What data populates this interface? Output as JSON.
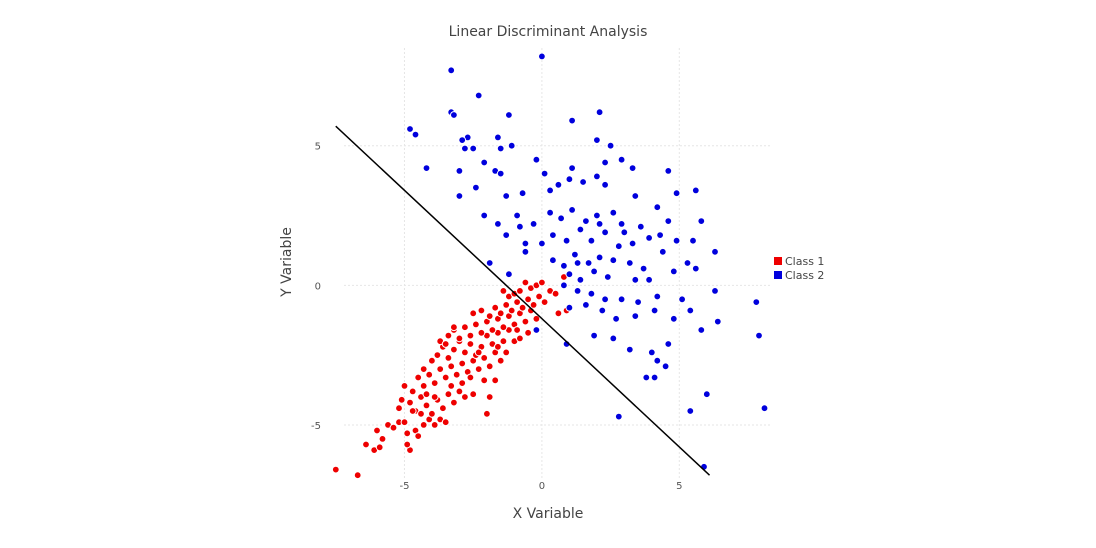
{
  "chart_data": {
    "type": "scatter",
    "title": "Linear Discriminant Analysis",
    "xlabel": "X Variable",
    "ylabel": "Y Variable",
    "xlim": [
      -7.2,
      8.3
    ],
    "ylim": [
      -6.9,
      8.5
    ],
    "xticks": [
      -5,
      0,
      5
    ],
    "yticks": [
      -5,
      0,
      5
    ],
    "grid": true,
    "legend_position": "right",
    "boundary_line": {
      "x": [
        -7.5,
        6.1
      ],
      "y": [
        5.7,
        -6.8
      ],
      "color": "#000000"
    },
    "series": [
      {
        "name": "Class 1",
        "color": "#ee0000",
        "points": [
          [
            -7.5,
            -6.6
          ],
          [
            -6.7,
            -6.8
          ],
          [
            -6.4,
            -5.7
          ],
          [
            -6.1,
            -5.9
          ],
          [
            -5.9,
            -5.8
          ],
          [
            -6.0,
            -5.2
          ],
          [
            -5.8,
            -5.5
          ],
          [
            -5.6,
            -5.0
          ],
          [
            -5.4,
            -5.1
          ],
          [
            -5.2,
            -4.9
          ],
          [
            -5.0,
            -4.9
          ],
          [
            -4.9,
            -5.3
          ],
          [
            -4.8,
            -5.9
          ],
          [
            -4.9,
            -5.7
          ],
          [
            -4.6,
            -5.2
          ],
          [
            -4.5,
            -5.4
          ],
          [
            -4.3,
            -5.0
          ],
          [
            -4.1,
            -4.8
          ],
          [
            -3.9,
            -5.0
          ],
          [
            -3.7,
            -4.8
          ],
          [
            -3.5,
            -4.9
          ],
          [
            -5.1,
            -4.1
          ],
          [
            -4.8,
            -4.2
          ],
          [
            -4.6,
            -4.5
          ],
          [
            -4.4,
            -4.0
          ],
          [
            -4.2,
            -4.3
          ],
          [
            -4.0,
            -4.6
          ],
          [
            -3.8,
            -4.1
          ],
          [
            -3.6,
            -4.4
          ],
          [
            -3.4,
            -3.9
          ],
          [
            -3.2,
            -4.2
          ],
          [
            -3.0,
            -3.8
          ],
          [
            -2.8,
            -4.0
          ],
          [
            -2.5,
            -3.9
          ],
          [
            -2.1,
            -3.4
          ],
          [
            -5.0,
            -3.6
          ],
          [
            -4.7,
            -3.8
          ],
          [
            -4.5,
            -3.3
          ],
          [
            -4.3,
            -3.6
          ],
          [
            -4.1,
            -3.2
          ],
          [
            -3.9,
            -3.5
          ],
          [
            -3.7,
            -3.0
          ],
          [
            -3.5,
            -3.3
          ],
          [
            -3.3,
            -2.9
          ],
          [
            -3.1,
            -3.2
          ],
          [
            -2.9,
            -2.8
          ],
          [
            -2.7,
            -3.1
          ],
          [
            -2.5,
            -2.7
          ],
          [
            -2.3,
            -3.0
          ],
          [
            -2.1,
            -2.6
          ],
          [
            -1.9,
            -2.9
          ],
          [
            -1.7,
            -2.4
          ],
          [
            -1.5,
            -2.7
          ],
          [
            -4.3,
            -3.0
          ],
          [
            -4.0,
            -2.7
          ],
          [
            -3.8,
            -2.5
          ],
          [
            -3.6,
            -2.2
          ],
          [
            -3.4,
            -2.6
          ],
          [
            -3.2,
            -2.3
          ],
          [
            -3.0,
            -2.0
          ],
          [
            -2.8,
            -2.4
          ],
          [
            -2.6,
            -2.1
          ],
          [
            -2.4,
            -2.5
          ],
          [
            -2.2,
            -2.2
          ],
          [
            -2.0,
            -1.8
          ],
          [
            -1.8,
            -2.1
          ],
          [
            -1.6,
            -1.7
          ],
          [
            -1.4,
            -2.0
          ],
          [
            -1.2,
            -1.6
          ],
          [
            -1.0,
            -2.0
          ],
          [
            -3.7,
            -2.0
          ],
          [
            -3.4,
            -1.8
          ],
          [
            -3.2,
            -1.6
          ],
          [
            -3.0,
            -1.9
          ],
          [
            -2.8,
            -1.5
          ],
          [
            -2.6,
            -1.8
          ],
          [
            -2.4,
            -1.4
          ],
          [
            -2.2,
            -1.7
          ],
          [
            -2.0,
            -1.3
          ],
          [
            -1.8,
            -1.6
          ],
          [
            -1.6,
            -1.2
          ],
          [
            -1.4,
            -1.5
          ],
          [
            -1.2,
            -1.1
          ],
          [
            -1.0,
            -1.4
          ],
          [
            -0.8,
            -1.0
          ],
          [
            -0.6,
            -1.3
          ],
          [
            -0.4,
            -0.9
          ],
          [
            -0.2,
            -1.2
          ],
          [
            -2.5,
            -1.0
          ],
          [
            -2.2,
            -0.9
          ],
          [
            -1.9,
            -1.1
          ],
          [
            -1.7,
            -0.8
          ],
          [
            -1.5,
            -1.0
          ],
          [
            -1.3,
            -0.7
          ],
          [
            -1.1,
            -0.9
          ],
          [
            -0.9,
            -0.6
          ],
          [
            -0.7,
            -0.8
          ],
          [
            -0.5,
            -0.5
          ],
          [
            -0.3,
            -0.7
          ],
          [
            -0.1,
            -0.4
          ],
          [
            0.1,
            -0.6
          ],
          [
            -1.4,
            -0.2
          ],
          [
            -1.2,
            -0.4
          ],
          [
            -1.0,
            -0.3
          ],
          [
            -0.8,
            -0.2
          ],
          [
            -0.6,
            0.1
          ],
          [
            -0.4,
            -0.1
          ],
          [
            -0.2,
            0.0
          ],
          [
            0.0,
            0.1
          ],
          [
            0.3,
            -0.2
          ],
          [
            0.5,
            -0.3
          ],
          [
            0.8,
            0.3
          ],
          [
            0.9,
            -0.9
          ],
          [
            0.6,
            -1.0
          ],
          [
            -0.5,
            -1.7
          ],
          [
            -0.8,
            -1.9
          ],
          [
            -1.7,
            -3.4
          ],
          [
            -2.0,
            -4.6
          ],
          [
            -1.9,
            -4.0
          ],
          [
            -3.2,
            -1.5
          ],
          [
            -3.5,
            -2.1
          ],
          [
            -3.9,
            -4.0
          ],
          [
            -4.2,
            -3.9
          ],
          [
            -4.4,
            -4.6
          ],
          [
            -4.7,
            -4.5
          ],
          [
            -5.2,
            -4.4
          ],
          [
            -3.3,
            -3.6
          ],
          [
            -2.9,
            -3.5
          ],
          [
            -2.6,
            -3.3
          ],
          [
            -2.3,
            -2.4
          ],
          [
            -1.6,
            -2.2
          ],
          [
            -1.3,
            -2.4
          ],
          [
            -0.9,
            -1.6
          ]
        ]
      },
      {
        "name": "Class 2",
        "color": "#0000dd",
        "points": [
          [
            0.0,
            8.2
          ],
          [
            -3.3,
            7.7
          ],
          [
            -2.3,
            6.8
          ],
          [
            -3.3,
            6.2
          ],
          [
            -3.2,
            6.1
          ],
          [
            -1.2,
            6.1
          ],
          [
            2.1,
            6.2
          ],
          [
            1.1,
            5.9
          ],
          [
            -4.8,
            5.6
          ],
          [
            -4.6,
            5.4
          ],
          [
            -2.7,
            5.3
          ],
          [
            -2.9,
            5.2
          ],
          [
            -1.6,
            5.3
          ],
          [
            -1.1,
            5.0
          ],
          [
            -1.5,
            4.9
          ],
          [
            -2.5,
            4.9
          ],
          [
            -2.8,
            4.9
          ],
          [
            2.0,
            5.2
          ],
          [
            2.5,
            5.0
          ],
          [
            -4.2,
            4.2
          ],
          [
            -3.0,
            4.1
          ],
          [
            -2.1,
            4.4
          ],
          [
            -1.7,
            4.1
          ],
          [
            -1.5,
            4.0
          ],
          [
            -0.2,
            4.5
          ],
          [
            0.1,
            4.0
          ],
          [
            1.1,
            4.2
          ],
          [
            2.3,
            4.4
          ],
          [
            2.9,
            4.5
          ],
          [
            3.3,
            4.2
          ],
          [
            4.6,
            4.1
          ],
          [
            -3.0,
            3.2
          ],
          [
            -2.4,
            3.5
          ],
          [
            -1.3,
            3.2
          ],
          [
            -0.7,
            3.3
          ],
          [
            0.3,
            3.4
          ],
          [
            0.6,
            3.6
          ],
          [
            1.0,
            3.8
          ],
          [
            1.5,
            3.7
          ],
          [
            2.0,
            3.9
          ],
          [
            2.3,
            3.6
          ],
          [
            3.4,
            3.2
          ],
          [
            4.9,
            3.3
          ],
          [
            5.6,
            3.4
          ],
          [
            -2.1,
            2.5
          ],
          [
            -1.6,
            2.2
          ],
          [
            -0.9,
            2.5
          ],
          [
            -0.8,
            2.1
          ],
          [
            -0.3,
            2.2
          ],
          [
            0.3,
            2.6
          ],
          [
            0.7,
            2.4
          ],
          [
            1.1,
            2.7
          ],
          [
            1.6,
            2.3
          ],
          [
            2.0,
            2.5
          ],
          [
            2.6,
            2.6
          ],
          [
            2.9,
            2.2
          ],
          [
            3.6,
            2.1
          ],
          [
            4.2,
            2.8
          ],
          [
            4.6,
            2.3
          ],
          [
            5.8,
            2.3
          ],
          [
            -1.3,
            1.8
          ],
          [
            -0.6,
            1.5
          ],
          [
            0.0,
            1.5
          ],
          [
            0.4,
            1.8
          ],
          [
            0.9,
            1.6
          ],
          [
            1.4,
            2.0
          ],
          [
            1.8,
            1.6
          ],
          [
            2.3,
            1.9
          ],
          [
            2.8,
            1.4
          ],
          [
            3.3,
            1.5
          ],
          [
            3.9,
            1.7
          ],
          [
            4.3,
            1.8
          ],
          [
            4.9,
            1.6
          ],
          [
            5.5,
            1.6
          ],
          [
            6.3,
            1.2
          ],
          [
            -1.9,
            0.8
          ],
          [
            -1.2,
            0.4
          ],
          [
            -0.6,
            1.2
          ],
          [
            0.4,
            0.9
          ],
          [
            0.8,
            0.7
          ],
          [
            1.2,
            1.1
          ],
          [
            1.7,
            0.8
          ],
          [
            2.1,
            1.0
          ],
          [
            2.6,
            0.9
          ],
          [
            3.2,
            0.8
          ],
          [
            3.7,
            0.6
          ],
          [
            4.4,
            1.2
          ],
          [
            4.8,
            0.5
          ],
          [
            5.3,
            0.8
          ],
          [
            5.6,
            0.6
          ],
          [
            1.0,
            0.4
          ],
          [
            1.4,
            0.2
          ],
          [
            1.9,
            0.5
          ],
          [
            2.4,
            0.3
          ],
          [
            3.4,
            0.2
          ],
          [
            3.9,
            0.2
          ],
          [
            0.8,
            0.0
          ],
          [
            1.3,
            -0.2
          ],
          [
            1.8,
            -0.3
          ],
          [
            2.3,
            -0.5
          ],
          [
            2.9,
            -0.5
          ],
          [
            3.5,
            -0.6
          ],
          [
            4.2,
            -0.4
          ],
          [
            5.1,
            -0.5
          ],
          [
            6.3,
            -0.2
          ],
          [
            7.8,
            -0.6
          ],
          [
            1.0,
            -0.8
          ],
          [
            1.6,
            -0.7
          ],
          [
            2.2,
            -0.9
          ],
          [
            2.7,
            -1.2
          ],
          [
            3.4,
            -1.1
          ],
          [
            4.1,
            -0.9
          ],
          [
            4.8,
            -1.2
          ],
          [
            5.4,
            -0.9
          ],
          [
            6.4,
            -1.3
          ],
          [
            0.9,
            -2.1
          ],
          [
            1.9,
            -1.8
          ],
          [
            2.6,
            -1.9
          ],
          [
            3.2,
            -2.3
          ],
          [
            4.0,
            -2.4
          ],
          [
            4.6,
            -2.1
          ],
          [
            5.8,
            -1.6
          ],
          [
            7.9,
            -1.8
          ],
          [
            3.8,
            -3.3
          ],
          [
            4.2,
            -2.7
          ],
          [
            4.5,
            -2.9
          ],
          [
            4.1,
            -3.3
          ],
          [
            6.0,
            -3.9
          ],
          [
            5.4,
            -4.5
          ],
          [
            8.1,
            -4.4
          ],
          [
            2.8,
            -4.7
          ],
          [
            5.9,
            -6.5
          ],
          [
            -0.2,
            -1.6
          ],
          [
            1.3,
            0.8
          ],
          [
            3.0,
            1.9
          ],
          [
            2.1,
            2.2
          ]
        ]
      }
    ]
  }
}
